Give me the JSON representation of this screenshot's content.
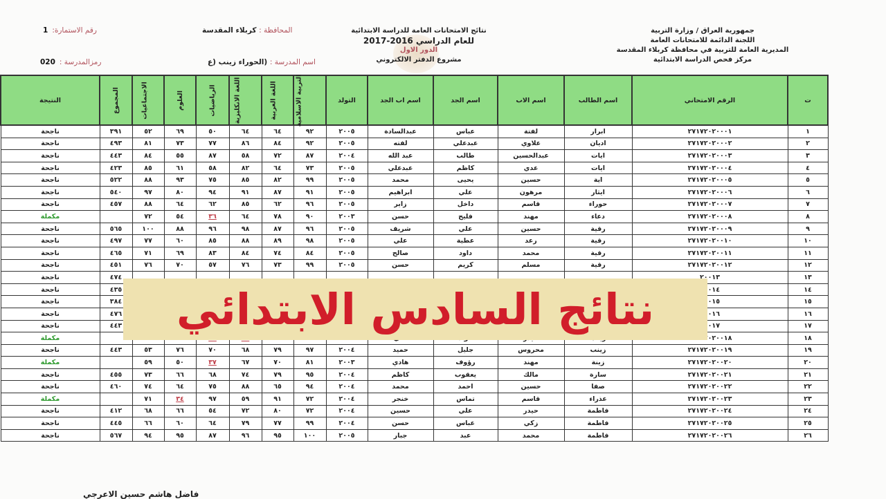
{
  "header": {
    "form_no_label": "رقم الاستمارة:",
    "form_no": "1",
    "province_label": "المحافظة :",
    "province": "كربلاء المقدسة",
    "school_code_label": "رمزالمدرسة :",
    "school_code": "020",
    "school_name_label": "اسم المدرسة :",
    "school_name": "(الحوراء زينب (ع",
    "center_lines": {
      "title": "نتائج الامتحانات العامة للدراسة الابتدائية",
      "year": "للعام الدراسي 2016-2017",
      "round": "الدور الاول",
      "project": "مشروع الدفتر الالكتروني"
    },
    "right_lines": {
      "l1": "جمهورية العراق / وزارة التربية",
      "l2": "اللجنة الدائمة للامتحانات العامة",
      "l3": "المديرية العامة للتربية في محافظة كربلاء المقدسة",
      "l4": "مركز فحص الدراسة الابتدائية"
    }
  },
  "table": {
    "columns": [
      "ت",
      "الرقم الامتحاني",
      "اسم الطالب",
      "اسم الاب",
      "اسم الجد",
      "اسم اب الجد",
      "التولد",
      "التربية الاسلامية",
      "اللغة العربية",
      "اللغة الانكليزية",
      "الرياضيات",
      "العلوم",
      "الاجتماعيات",
      "المجموع",
      "النتيجة"
    ],
    "rows": [
      [
        "١",
        "٢٧١٧٢٠٢٠٠٠١",
        "ابرار",
        "لفتة",
        "عباس",
        "عبدالسادة",
        "٢٠٠٥",
        "٩٢",
        "٦٤",
        "٦٤",
        "٥٠",
        "٦٩",
        "٥٢",
        "٣٩١",
        "ناجحة"
      ],
      [
        "٢",
        "٢٧١٧٢٠٢٠٠٠٢",
        "اديان",
        "علاوي",
        "عبدعلي",
        "لفته",
        "٢٠٠٥",
        "٩٢",
        "٨٤",
        "٨٦",
        "٧٧",
        "٧٣",
        "٨١",
        "٤٩٣",
        "ناجحة"
      ],
      [
        "٣",
        "٢٧١٧٢٠٢٠٠٠٣",
        "ايات",
        "عبدالحسين",
        "طالب",
        "عبد الله",
        "٢٠٠٤",
        "٨٧",
        "٧٢",
        "٥٨",
        "٨٧",
        "٥٥",
        "٨٤",
        "٤٤٣",
        "ناجحة"
      ],
      [
        "٤",
        "٢٧١٧٢٠٢٠٠٠٤",
        "ايات",
        "عدي",
        "كاظم",
        "عبدعلي",
        "٢٠٠٥",
        "٧٣",
        "٦٤",
        "٨٢",
        "٥٨",
        "٦١",
        "٨٥",
        "٤٢٣",
        "ناجحة"
      ],
      [
        "٥",
        "٢٧١٧٢٠٢٠٠٠٥",
        "اية",
        "حسين",
        "يحيى",
        "محمد",
        "٢٠٠٥",
        "٩٩",
        "٨٢",
        "٨٥",
        "٧٥",
        "٩٣",
        "٨٨",
        "٥٢٢",
        "ناجحة"
      ],
      [
        "٦",
        "٢٧١٧٢٠٢٠٠٠٦",
        "ايثار",
        "مرهون",
        "علي",
        "ابراهيم",
        "٢٠٠٥",
        "٩١",
        "٨٧",
        "٩١",
        "٩٤",
        "٨٠",
        "٩٧",
        "٥٤٠",
        "ناجحة"
      ],
      [
        "٧",
        "٢٧١٧٢٠٢٠٠٠٧",
        "حوراء",
        "قاسم",
        "داخل",
        "زاير",
        "٢٠٠٥",
        "٩٦",
        "٦٢",
        "٨٥",
        "٦٢",
        "٦٤",
        "٨٨",
        "٤٥٧",
        "ناجحة"
      ],
      [
        "٨",
        "٢٧١٧٢٠٢٠٠٠٨",
        "دعاء",
        "مهند",
        "فليح",
        "حسن",
        "٢٠٠٣",
        "٩٠",
        "٧٨",
        "٦٤",
        "٣٦",
        "٥٤",
        "٧٢",
        "",
        "مكملة"
      ],
      [
        "٩",
        "٢٧١٧٢٠٢٠٠٠٩",
        "رقية",
        "حسين",
        "علي",
        "شريف",
        "٢٠٠٥",
        "٩٦",
        "٨٧",
        "٩٨",
        "٩٦",
        "٨٨",
        "١٠٠",
        "٥٦٥",
        "ناجحة"
      ],
      [
        "١٠",
        "٢٧١٧٢٠٢٠٠١٠",
        "رقية",
        "رعد",
        "عطية",
        "علي",
        "٢٠٠٥",
        "٩٨",
        "٨٩",
        "٨٨",
        "٨٥",
        "٦٠",
        "٧٧",
        "٤٩٧",
        "ناجحة"
      ],
      [
        "١١",
        "٢٧١٧٢٠٢٠٠١١",
        "رقية",
        "محمد",
        "داود",
        "صالح",
        "٢٠٠٥",
        "٨٤",
        "٧٤",
        "٨٤",
        "٨٣",
        "٦٩",
        "٧١",
        "٤٦٥",
        "ناجحة"
      ],
      [
        "١٢",
        "٢٧١٧٢٠٢٠٠١٢",
        "رقية",
        "مسلم",
        "كريم",
        "حسن",
        "٢٠٠٥",
        "٩٩",
        "٧٣",
        "٧٦",
        "٥٧",
        "٧٠",
        "٧٦",
        "٤٥١",
        "ناجحة"
      ],
      [
        "١٣",
        "٢٠٠١٣",
        "",
        "",
        "",
        "",
        "",
        "",
        "",
        "",
        "",
        "",
        "",
        "٤٧٤",
        "ناجحة"
      ],
      [
        "١٤",
        "٢٠٠١٤",
        "",
        "",
        "",
        "",
        "",
        "",
        "",
        "",
        "",
        "",
        "",
        "٤٣٥",
        "ناجحة"
      ],
      [
        "١٥",
        "٢٠٠١٥",
        "",
        "",
        "",
        "",
        "",
        "",
        "",
        "",
        "",
        "",
        "",
        "٣٨٤",
        "ناجحة"
      ],
      [
        "١٦",
        "٢٠٠١٦",
        "",
        "",
        "",
        "",
        "",
        "",
        "",
        "",
        "",
        "",
        "",
        "٤٧٦",
        "ناجحة"
      ],
      [
        "١٧",
        "٢٠٠١٧",
        "",
        "",
        "",
        "",
        "",
        "",
        "",
        "",
        "",
        "",
        "",
        "٤٤٣",
        "ناجحة"
      ],
      [
        "١٨",
        "٢٧١٧٢٠٢٠٠١٨",
        "زينب",
        "حيدر",
        "فؤاد",
        "علي",
        "٢٠٠٥",
        "٧٠",
        "٥٢",
        "٣٥",
        "٣٧",
        "٦٦",
        "٥٦",
        "",
        "مكملة"
      ],
      [
        "١٩",
        "٢٧١٧٢٠٢٠٠١٩",
        "زينب",
        "محروس",
        "جليل",
        "حميد",
        "٢٠٠٤",
        "٩٧",
        "٧٩",
        "٦٨",
        "٧٠",
        "٧٦",
        "٥٣",
        "٤٤٣",
        "ناجحة"
      ],
      [
        "٢٠",
        "٢٧١٧٢٠٢٠٠٢٠",
        "زينة",
        "مهند",
        "رؤوف",
        "هادي",
        "٢٠٠٣",
        "٨١",
        "٧٠",
        "٦٧",
        "٣٧",
        "٥٠",
        "٥٩",
        "",
        "مكملة"
      ],
      [
        "٢١",
        "٢٧١٧٢٠٢٠٠٢١",
        "سارة",
        "مالك",
        "يعقوب",
        "كاظم",
        "٢٠٠٤",
        "٩٥",
        "٧٩",
        "٧٤",
        "٦٨",
        "٦٦",
        "٧٣",
        "٤٥٥",
        "ناجحة"
      ],
      [
        "٢٢",
        "٢٧١٧٢٠٢٠٠٢٢",
        "صفا",
        "حسين",
        "احمد",
        "محمد",
        "٢٠٠٤",
        "٩٤",
        "٦٥",
        "٨٨",
        "٧٥",
        "٦٤",
        "٧٤",
        "٤٦٠",
        "ناجحة"
      ],
      [
        "٢٣",
        "٢٧١٧٢٠٢٠٠٢٣",
        "عذراء",
        "قاسم",
        "تماس",
        "خنجر",
        "٢٠٠٤",
        "٧٢",
        "٩١",
        "٥٩",
        "٩٧",
        "٣٤",
        "٧١",
        "",
        "مكملة"
      ],
      [
        "٢٤",
        "٢٧١٧٢٠٢٠٠٢٤",
        "فاطمة",
        "حيدر",
        "علي",
        "حسين",
        "٢٠٠٤",
        "٧٢",
        "٨٠",
        "٧٢",
        "٥٤",
        "٦٦",
        "٦٨",
        "٤١٢",
        "ناجحة"
      ],
      [
        "٢٥",
        "٢٧١٧٢٠٢٠٠٢٥",
        "فاطمة",
        "زكي",
        "عباس",
        "حسن",
        "٢٠٠٤",
        "٩٩",
        "٧٧",
        "٧٩",
        "٦٤",
        "٦٠",
        "٦٦",
        "٤٤٥",
        "ناجحة"
      ],
      [
        "٢٦",
        "٢٧١٧٢٠٢٠٠٢٦",
        "فاطمة",
        "محمد",
        "عبد",
        "جبار",
        "٢٠٠٥",
        "١٠٠",
        "٩٥",
        "٩٦",
        "٨٧",
        "٩٥",
        "٩٤",
        "٥٦٧",
        "ناجحة"
      ]
    ]
  },
  "banner": {
    "text": "نتائج السادس الابتدائي"
  },
  "footer": {
    "signature": "فاضل هاشم حسين الاعرجي"
  },
  "colors": {
    "header_green": "#8fdc84",
    "banner_bg": "#efe2b0",
    "banner_text": "#d11e2a",
    "fail_mark": "#c0404a",
    "supplementary": "#2e9a2e"
  }
}
